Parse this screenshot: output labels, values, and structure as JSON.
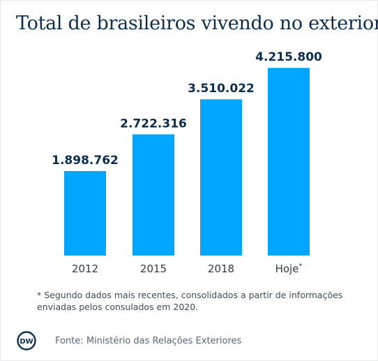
{
  "header": {
    "title": "Total de brasileiros vivendo no exterior"
  },
  "chart_data": {
    "type": "bar",
    "title": "Total de brasileiros vivendo no exterior",
    "categories": [
      "2012",
      "2015",
      "2018",
      "Hoje"
    ],
    "category_marks": [
      "",
      "",
      "",
      "*"
    ],
    "values": [
      1898762,
      2722316,
      3510022,
      4215800
    ],
    "value_labels": [
      "1.898.762",
      "2.722.316",
      "3.510.022",
      "4.215.800"
    ],
    "xlabel": "",
    "ylabel": "",
    "ylim": [
      0,
      4800000
    ],
    "grid": false,
    "legend": "none",
    "colors": {
      "bar": "#00a5ff",
      "value_label": "#0c2e4c",
      "tick_label": "#2d3c4a",
      "baseline": "#c6ced4"
    }
  },
  "footnote": "* Segundo dados mais recentes, consolidados a partir de informações enviadas pelos consulados em 2020.",
  "source": "Fonte: Ministério das Relações Exteriores",
  "logo": {
    "text": "DW",
    "icon": "dw-logo-icon",
    "color": "#0c2e4c"
  }
}
